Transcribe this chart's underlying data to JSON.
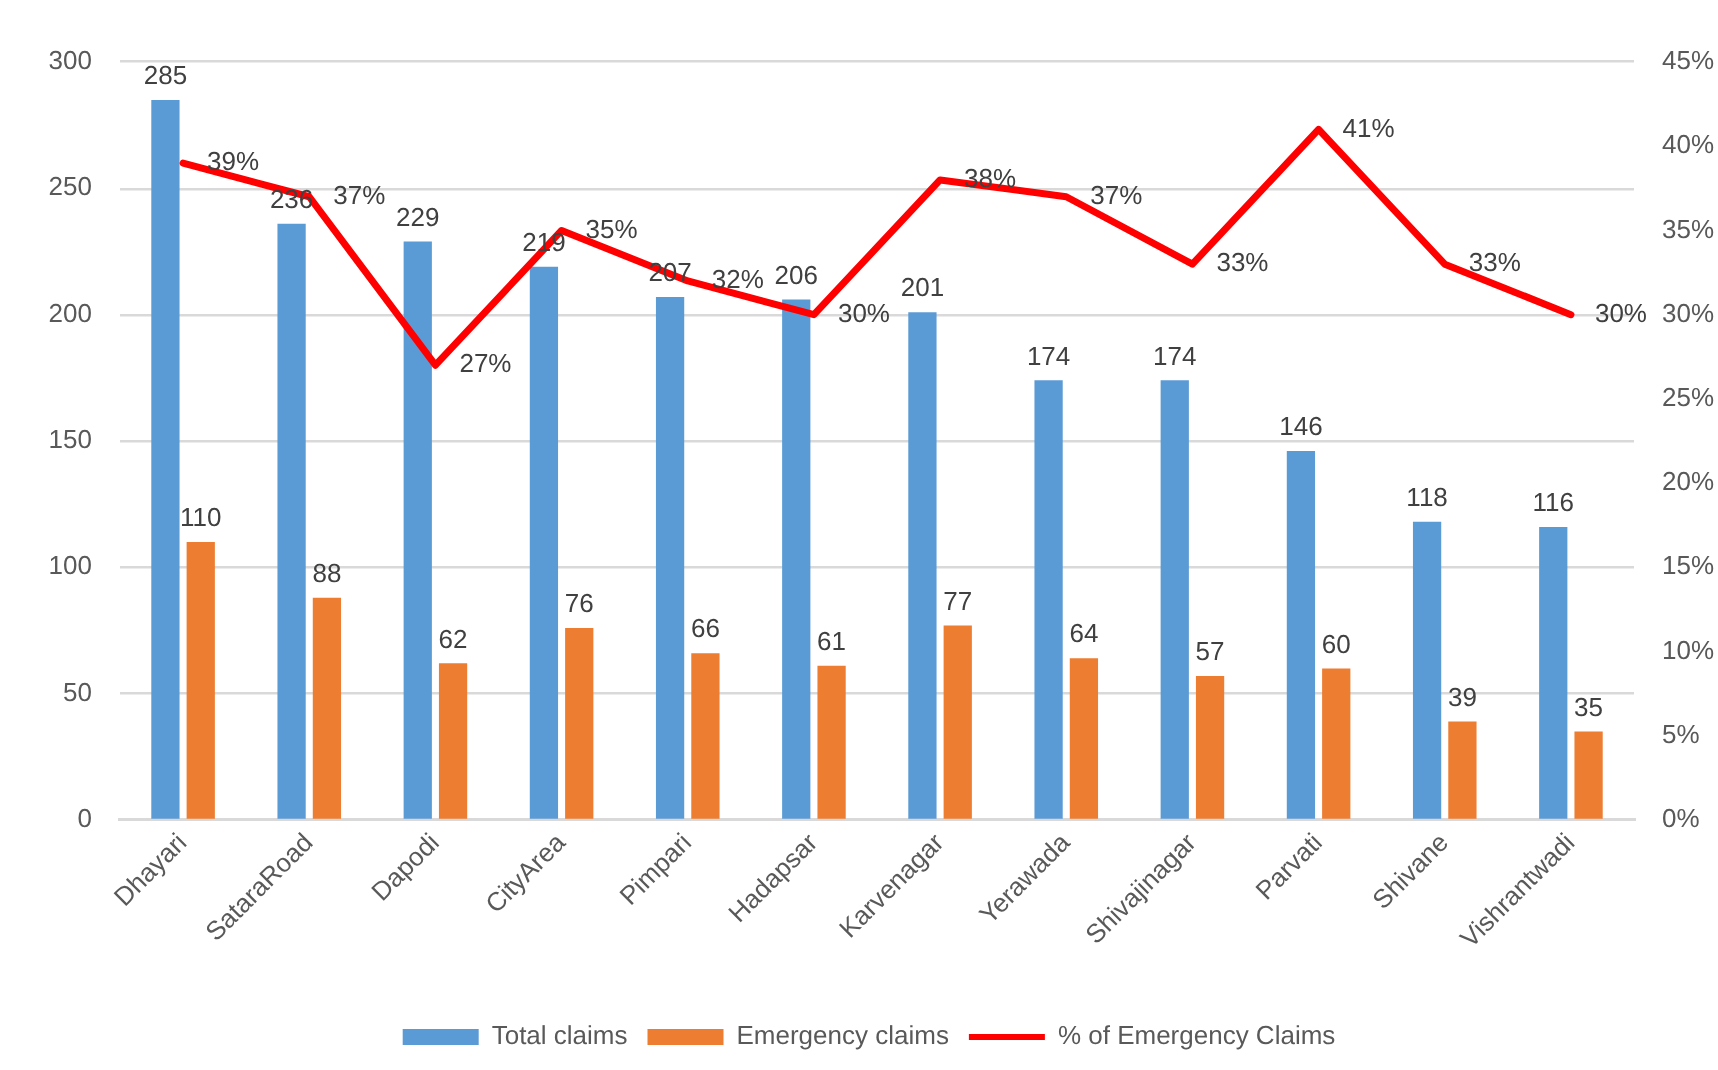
{
  "chart_data": {
    "type": "bar",
    "categories": [
      "Dhayari",
      "SataraRoad",
      "Dapodi",
      "CityArea",
      "Pimpari",
      "Hadapsar",
      "Karvenagar",
      "Yerawada",
      "Shivajinagar",
      "Parvati",
      "Shivane",
      "Vishrantwadi"
    ],
    "series": [
      {
        "name": "Total claims",
        "color": "#5b9bd5",
        "values": [
          285,
          236,
          229,
          219,
          207,
          206,
          201,
          174,
          174,
          146,
          118,
          116
        ]
      },
      {
        "name": "Emergency claims",
        "color": "#ed7d31",
        "values": [
          110,
          88,
          62,
          76,
          66,
          61,
          77,
          64,
          57,
          60,
          39,
          35
        ]
      },
      {
        "name": "% of Emergency Claims",
        "type": "line",
        "axis": "y2",
        "color": "#ff0000",
        "values": [
          39,
          37,
          27,
          35,
          32,
          30,
          38,
          37,
          33,
          41,
          33,
          30
        ],
        "value_labels": [
          "39%",
          "37%",
          "27%",
          "35%",
          "32%",
          "30%",
          "38%",
          "37%",
          "33%",
          "41%",
          "33%",
          "30%"
        ]
      }
    ],
    "ylim": [
      0,
      300
    ],
    "yticks": [
      0,
      50,
      100,
      150,
      200,
      250,
      300
    ],
    "y2lim": [
      0,
      45
    ],
    "y2ticks": [
      {
        "value": 0,
        "label": "0%"
      },
      {
        "value": 5,
        "label": "5%"
      },
      {
        "value": 10,
        "label": "10%"
      },
      {
        "value": 15,
        "label": "15%"
      },
      {
        "value": 20,
        "label": "20%"
      },
      {
        "value": 25,
        "label": "25%"
      },
      {
        "value": 30,
        "label": "30%"
      },
      {
        "value": 35,
        "label": "35%"
      },
      {
        "value": 40,
        "label": "40%"
      },
      {
        "value": 45,
        "label": "45%"
      }
    ],
    "grid": "y",
    "legend": "bottom",
    "data_labels": true,
    "marker": "none"
  }
}
